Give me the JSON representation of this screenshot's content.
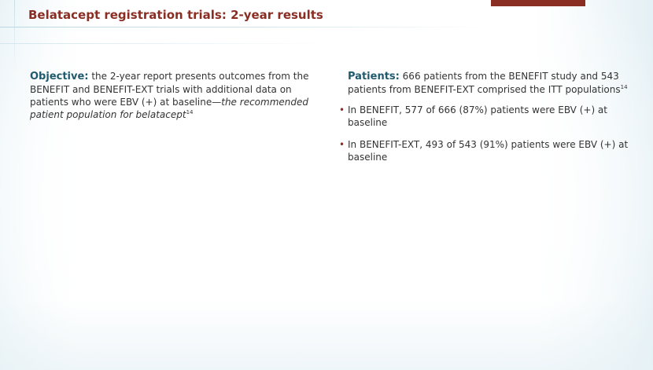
{
  "slide": {
    "title": "Belatacept registration trials: 2-year results",
    "accent_color": "#8a2e24",
    "heading_color": "#1f5a6e"
  },
  "objective": {
    "label": "Objective:",
    "text": " the 2-year report presents outcomes from the BENEFIT and BENEFIT-EXT trials with additional data on patients who were EBV (+) at baseline—",
    "emphasis": "the recommended patient population for belatacept",
    "ref": "14"
  },
  "patients": {
    "label": "Patients:",
    "text": " 666 patients from the BENEFIT study and 543 patients from BENEFIT-EXT comprised the ITT populations",
    "ref": "14",
    "bullets": [
      {
        "marker": "•",
        "text": "In BENEFIT, 577 of 666 (87%) patients were EBV (+) at baseline"
      },
      {
        "marker": "•",
        "text": "In BENEFIT-EXT, 493 of 543 (91%) patients were EBV (+) at baseline"
      }
    ]
  }
}
